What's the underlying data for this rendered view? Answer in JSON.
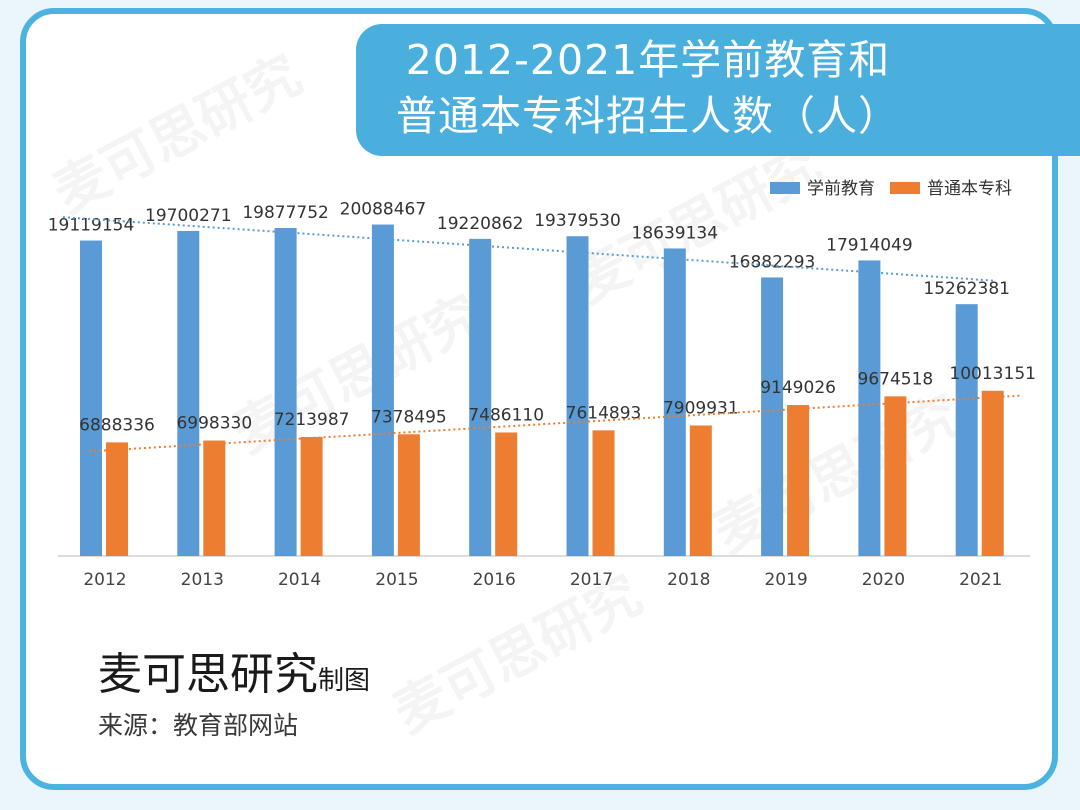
{
  "title": {
    "line1": "2012-2021年学前教育和",
    "line2": "普通本专科招生人数（人）"
  },
  "credit": {
    "brand": "麦可思研究",
    "suffix": "制图"
  },
  "source": "来源：教育部网站",
  "watermark": "麦可思研究",
  "colors": {
    "frame": "#4bb3de",
    "title_bg": "#4aafdc",
    "series1": "#5b9bd5",
    "series2": "#ed7d31"
  },
  "chart_data": {
    "type": "bar",
    "title": "2012-2021年学前教育和普通本专科招生人数（人）",
    "categories": [
      "2012",
      "2013",
      "2014",
      "2015",
      "2016",
      "2017",
      "2018",
      "2019",
      "2020",
      "2021"
    ],
    "series": [
      {
        "name": "学前教育",
        "values": [
          19119154,
          19700271,
          19877752,
          20088467,
          19220862,
          19379530,
          18639134,
          16882293,
          17914049,
          15262381
        ],
        "trendline": "linear"
      },
      {
        "name": "普通本专科",
        "values": [
          6888336,
          6998330,
          7213987,
          7378495,
          7486110,
          7614893,
          7909931,
          9149026,
          9674518,
          10013151
        ],
        "trendline": "linear"
      }
    ],
    "ylim": [
      0,
      20000000
    ],
    "legend": "top-right",
    "grid": false,
    "data_labels": true
  }
}
